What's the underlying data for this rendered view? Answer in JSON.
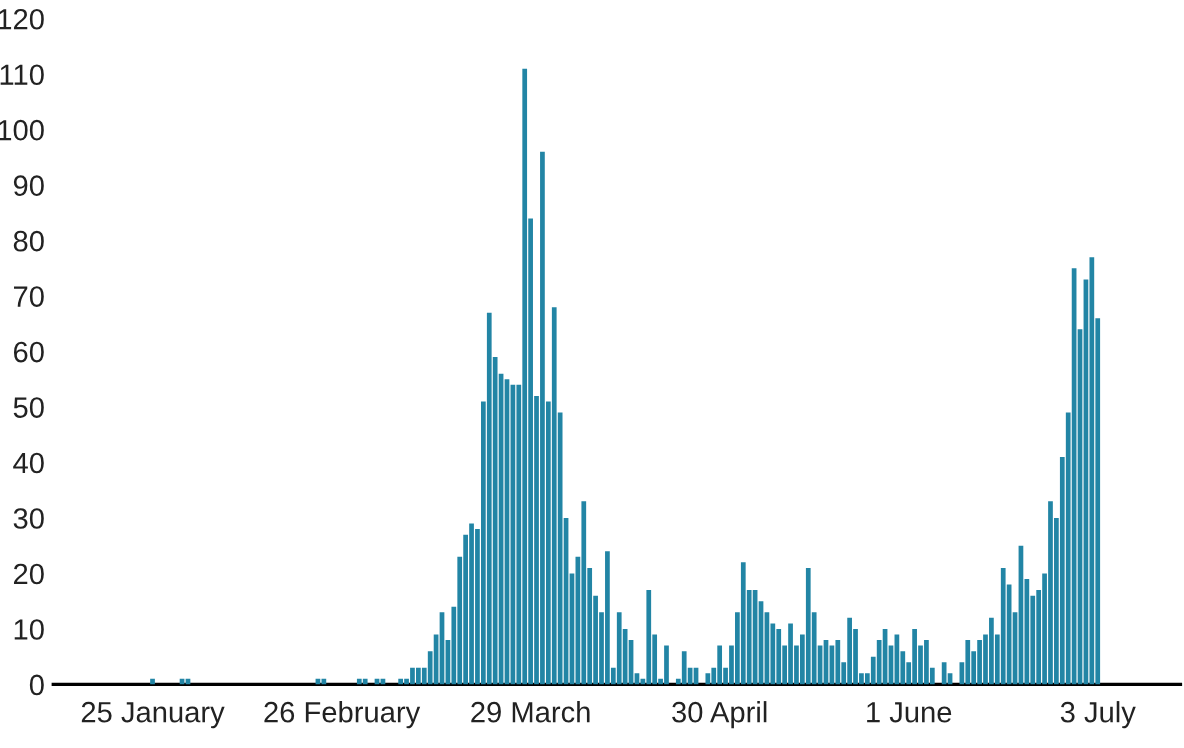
{
  "chart_data": {
    "type": "bar",
    "color": "#2285a5",
    "categories": [
      "25 January",
      null,
      null,
      null,
      null,
      null,
      null,
      null,
      null,
      null,
      null,
      null,
      null,
      null,
      null,
      null,
      null,
      null,
      null,
      null,
      null,
      null,
      null,
      null,
      null,
      null,
      null,
      null,
      null,
      null,
      null,
      null,
      "26 February",
      null,
      null,
      null,
      null,
      null,
      null,
      null,
      null,
      null,
      null,
      null,
      null,
      null,
      null,
      null,
      null,
      null,
      null,
      null,
      null,
      null,
      null,
      null,
      null,
      null,
      null,
      null,
      null,
      null,
      null,
      null,
      "29 March",
      null,
      null,
      null,
      null,
      null,
      null,
      null,
      null,
      null,
      null,
      null,
      null,
      null,
      null,
      null,
      null,
      null,
      null,
      null,
      null,
      null,
      null,
      null,
      null,
      null,
      null,
      null,
      null,
      null,
      null,
      null,
      "30 April",
      null,
      null,
      null,
      null,
      null,
      null,
      null,
      null,
      null,
      null,
      null,
      null,
      null,
      null,
      null,
      null,
      null,
      null,
      null,
      null,
      null,
      null,
      null,
      null,
      null,
      null,
      null,
      null,
      null,
      null,
      null,
      "1 June",
      null,
      null,
      null,
      null,
      null,
      null,
      null,
      null,
      null,
      null,
      null,
      null,
      null,
      null,
      null,
      null,
      null,
      null,
      null,
      null,
      null,
      null,
      null,
      null,
      null,
      null,
      null,
      null,
      null,
      null,
      null,
      "3 July"
    ],
    "values": [
      1,
      0,
      0,
      0,
      0,
      1,
      1,
      0,
      0,
      0,
      0,
      0,
      0,
      0,
      0,
      0,
      0,
      0,
      0,
      0,
      0,
      0,
      0,
      0,
      0,
      0,
      0,
      0,
      1,
      1,
      0,
      0,
      0,
      0,
      0,
      1,
      1,
      0,
      1,
      1,
      0,
      0,
      1,
      1,
      3,
      3,
      3,
      6,
      9,
      13,
      8,
      14,
      23,
      27,
      29,
      28,
      51,
      67,
      59,
      56,
      55,
      54,
      54,
      111,
      84,
      52,
      96,
      51,
      68,
      49,
      30,
      20,
      23,
      33,
      21,
      16,
      13,
      24,
      3,
      13,
      10,
      8,
      2,
      1,
      17,
      9,
      1,
      7,
      0,
      1,
      6,
      3,
      3,
      0,
      2,
      3,
      7,
      3,
      7,
      13,
      22,
      17,
      17,
      15,
      13,
      11,
      10,
      7,
      11,
      7,
      9,
      21,
      13,
      7,
      8,
      7,
      8,
      4,
      12,
      10,
      2,
      2,
      5,
      8,
      10,
      7,
      9,
      6,
      4,
      10,
      7,
      8,
      3,
      0,
      4,
      2,
      0,
      4,
      8,
      6,
      8,
      9,
      12,
      9,
      21,
      18,
      13,
      25,
      19,
      16,
      17,
      20,
      33,
      30,
      41,
      49,
      75,
      64,
      73,
      77,
      66
    ],
    "ylim": [
      0,
      120
    ],
    "yticks": [
      0,
      10,
      20,
      30,
      40,
      50,
      60,
      70,
      80,
      90,
      100,
      110,
      120
    ]
  }
}
